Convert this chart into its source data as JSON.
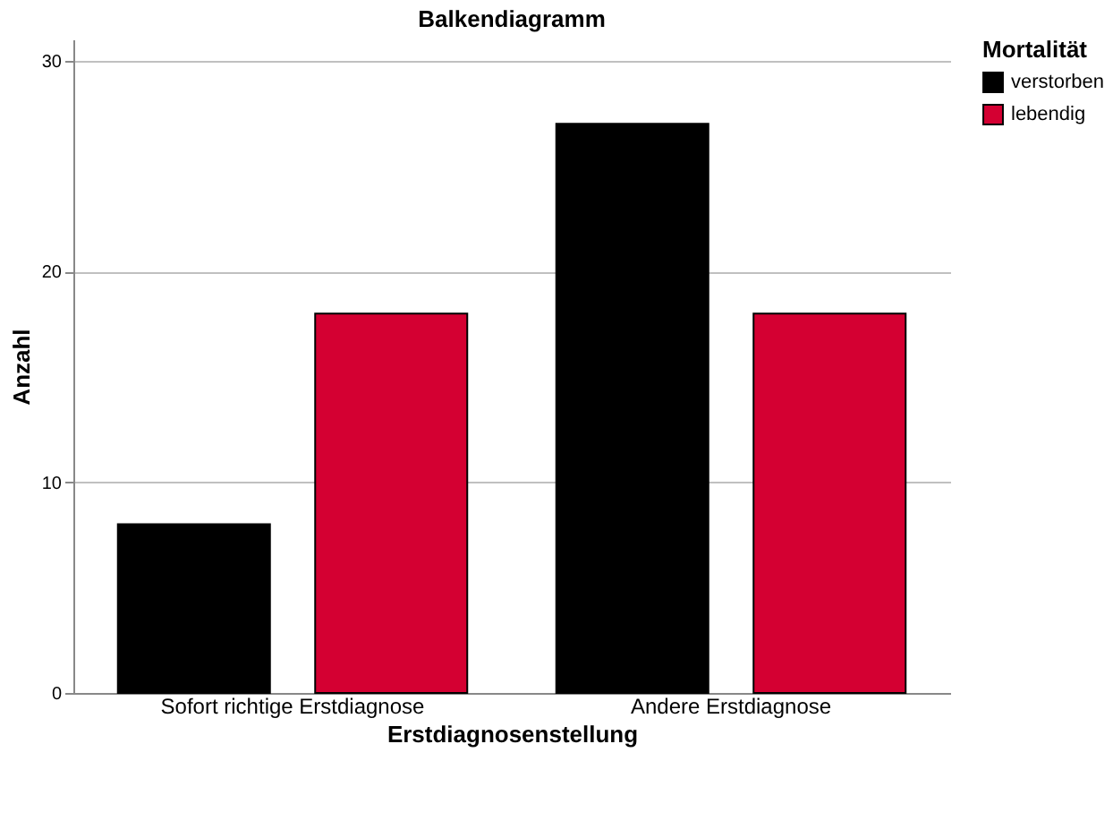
{
  "chart_data": {
    "type": "bar",
    "title": "Balkendiagramm",
    "xlabel": "Erstdiagnosenstellung",
    "ylabel": "Anzahl",
    "legend_title": "Mortalität",
    "categories": [
      "Sofort richtige Erstdiagnose",
      "Andere Erstdiagnose"
    ],
    "series": [
      {
        "name": "verstorben",
        "color": "#000000",
        "values": [
          8,
          27
        ]
      },
      {
        "name": "lebendig",
        "color": "#d40032",
        "values": [
          18,
          18
        ]
      }
    ],
    "ylim": [
      0,
      31
    ],
    "yticks": [
      0,
      10,
      20,
      30
    ],
    "grid": "y",
    "legend": "top right"
  }
}
